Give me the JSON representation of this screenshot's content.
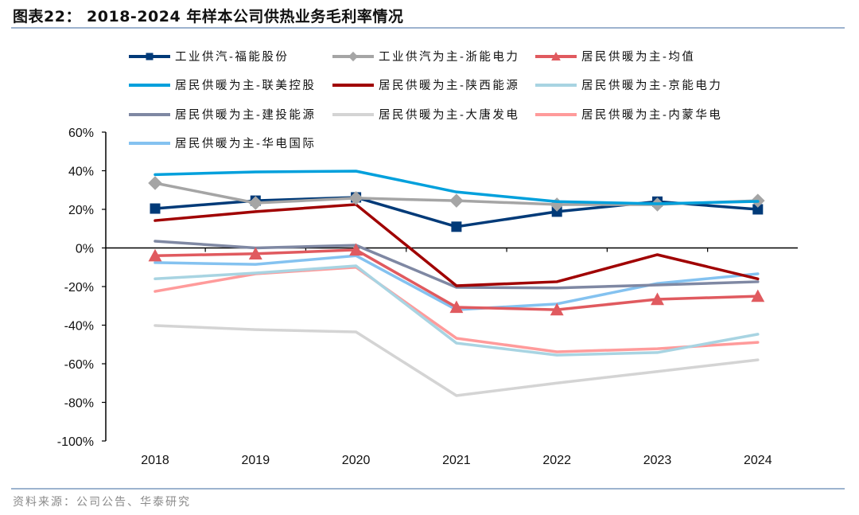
{
  "figure": {
    "title": "图表22：  2018-2024 年样本公司供热业务毛利率情况",
    "source": "资料来源：公司公告、华泰研究"
  },
  "chart_data": {
    "type": "line",
    "title": "2018-2024 年样本公司供热业务毛利率情况",
    "xlabel": "",
    "ylabel": "",
    "x": [
      "2018",
      "2019",
      "2020",
      "2021",
      "2022",
      "2023",
      "2024"
    ],
    "ylim": [
      -100,
      60
    ],
    "yticks": [
      60,
      40,
      20,
      0,
      -20,
      -40,
      -60,
      -80,
      -100
    ],
    "ytick_labels": [
      "60%",
      "40%",
      "20%",
      "0%",
      "-20%",
      "-40%",
      "-60%",
      "-80%",
      "-100%"
    ],
    "y_unit": "%",
    "grid": false,
    "legend_position": "top",
    "series": [
      {
        "name": "工业供汽-福能股份",
        "color": "#003a78",
        "marker": "square",
        "values": [
          20.4,
          24.5,
          26.2,
          11.0,
          18.8,
          24.0,
          20.0
        ]
      },
      {
        "name": "工业供汽为主-浙能电力",
        "color": "#a5a5a5",
        "marker": "diamond",
        "values": [
          33.6,
          23.3,
          25.8,
          24.5,
          22.5,
          22.5,
          24.5
        ]
      },
      {
        "name": "居民供暖为主-均值",
        "color": "#e05a5f",
        "marker": "triangle",
        "values": [
          -4.0,
          -3.0,
          -1.0,
          -30.7,
          -32.0,
          -26.6,
          -25.0
        ]
      },
      {
        "name": "居民供暖为主-联美控股",
        "color": "#00a0dc",
        "marker": "none",
        "values": [
          38.0,
          39.4,
          39.8,
          29.0,
          24.0,
          22.9,
          24.1
        ]
      },
      {
        "name": "居民供暖为主-陕西能源",
        "color": "#a00000",
        "marker": "none",
        "values": [
          14.2,
          18.8,
          22.5,
          -19.6,
          -17.5,
          -3.5,
          -16.0
        ]
      },
      {
        "name": "居民供暖为主-京能电力",
        "color": "#a8d4e2",
        "marker": "none",
        "values": [
          -16.0,
          -13.0,
          -9.3,
          -49.3,
          -55.5,
          -54.2,
          -44.7
        ]
      },
      {
        "name": "居民供暖为主-建投能源",
        "color": "#7f88a3",
        "marker": "none",
        "values": [
          3.5,
          0.0,
          1.4,
          -20.4,
          -20.7,
          -19.2,
          -17.5
        ]
      },
      {
        "name": "居民供暖为主-大唐发电",
        "color": "#d4d4d4",
        "marker": "none",
        "values": [
          -40.2,
          -42.3,
          -43.5,
          -76.5,
          -70.0,
          -64.0,
          -58.0
        ]
      },
      {
        "name": "居民供暖为主-内蒙华电",
        "color": "#ff9b9b",
        "marker": "none",
        "values": [
          -22.5,
          -13.4,
          -10.0,
          -46.8,
          -53.8,
          -52.2,
          -48.9
        ]
      },
      {
        "name": "居民供暖为主-华电国际",
        "color": "#84c2f0",
        "marker": "none",
        "values": [
          -7.6,
          -8.5,
          -4.0,
          -32.0,
          -29.0,
          -18.4,
          -13.4
        ]
      }
    ]
  }
}
